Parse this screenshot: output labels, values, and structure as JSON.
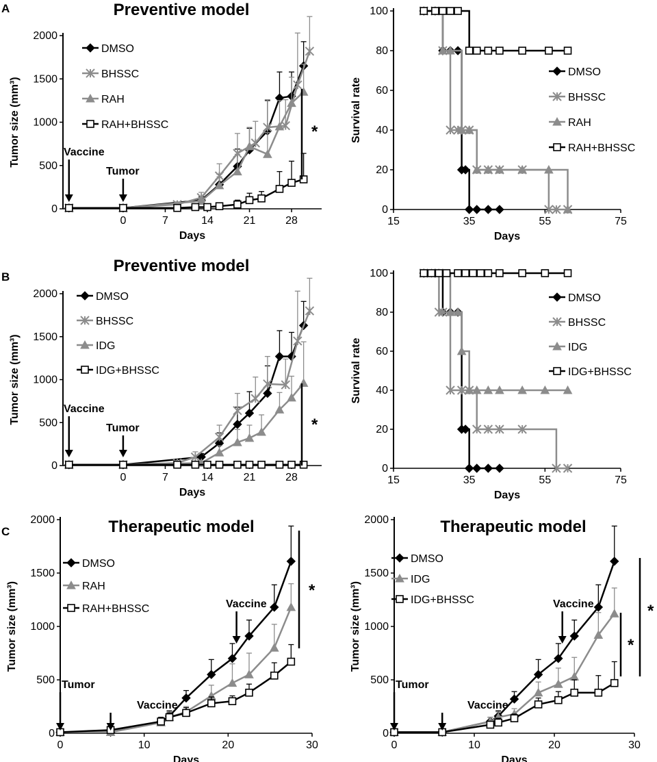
{
  "chart_data": [
    {
      "type": "line",
      "panel": "A",
      "title": "Preventive model",
      "xlabel": "Days",
      "ylabel": "Tumor size (mm³)",
      "xlim": [
        -10,
        33
      ],
      "ylim": [
        0,
        2000
      ],
      "xticks": [
        0,
        7,
        14,
        21,
        28
      ],
      "yticks": [
        0,
        500,
        1000,
        1500,
        2000
      ],
      "legend_position": "top-left",
      "series": [
        {
          "name": "DMSO",
          "marker": "diamond",
          "color": "#000000",
          "x": [
            -9,
            0,
            13,
            16,
            19,
            21,
            24,
            26,
            28,
            30
          ],
          "y": [
            10,
            10,
            100,
            280,
            490,
            680,
            900,
            1280,
            1300,
            1650
          ],
          "err": [
            0,
            0,
            40,
            120,
            200,
            250,
            350,
            300,
            280,
            280
          ]
        },
        {
          "name": "BHSSC",
          "marker": "x",
          "color": "#8c8c8c",
          "x": [
            -9,
            0,
            9,
            13,
            16,
            19,
            22,
            24,
            27,
            29,
            31
          ],
          "y": [
            10,
            10,
            50,
            130,
            380,
            640,
            760,
            940,
            960,
            1430,
            1820
          ],
          "err": [
            0,
            0,
            30,
            60,
            140,
            230,
            250,
            320,
            300,
            600,
            400
          ]
        },
        {
          "name": "RAH",
          "marker": "triangle",
          "color": "#8c8c8c",
          "x": [
            -9,
            0,
            13,
            16,
            19,
            21,
            24,
            26,
            28,
            30
          ],
          "y": [
            10,
            10,
            90,
            270,
            430,
            720,
            630,
            950,
            1220,
            1350
          ],
          "err": [
            0,
            0,
            40,
            100,
            200,
            220,
            250,
            300,
            300,
            320
          ]
        },
        {
          "name": "RAH+BHSSC",
          "marker": "square",
          "color": "#000000",
          "x": [
            -9,
            0,
            9,
            12,
            14,
            16,
            19,
            21,
            23,
            26,
            28,
            30
          ],
          "y": [
            10,
            10,
            10,
            20,
            20,
            30,
            50,
            100,
            120,
            230,
            300,
            340
          ],
          "err": [
            0,
            0,
            0,
            20,
            20,
            30,
            50,
            80,
            80,
            200,
            250,
            300
          ]
        }
      ],
      "annotations": [
        {
          "text": "Vaccine",
          "x": -9
        },
        {
          "text": "Tumor",
          "x": 0
        }
      ],
      "significance": "*"
    },
    {
      "type": "line",
      "panel": "A-right",
      "title": "",
      "xlabel": "Days",
      "ylabel": "Survival rate",
      "xlim": [
        15,
        75
      ],
      "ylim": [
        0,
        100
      ],
      "xticks": [
        15,
        35,
        55,
        75
      ],
      "yticks": [
        0,
        20,
        40,
        60,
        80,
        100
      ],
      "legend_position": "right",
      "series": [
        {
          "name": "DMSO",
          "marker": "diamond",
          "color": "#000000",
          "x": [
            23,
            26,
            28,
            30,
            32,
            33,
            34,
            35,
            37,
            40,
            43
          ],
          "y": [
            100,
            100,
            80,
            80,
            80,
            20,
            20,
            0,
            0,
            0,
            0
          ]
        },
        {
          "name": "BHSSC",
          "marker": "x",
          "color": "#8c8c8c",
          "x": [
            23,
            26,
            28,
            30,
            32,
            33,
            35,
            37,
            40,
            43,
            49,
            56,
            58,
            61
          ],
          "y": [
            100,
            100,
            80,
            40,
            40,
            40,
            40,
            20,
            20,
            20,
            20,
            0,
            0,
            0
          ]
        },
        {
          "name": "RAH",
          "marker": "triangle",
          "color": "#8c8c8c",
          "x": [
            23,
            26,
            28,
            30,
            33,
            35,
            37,
            40,
            43,
            49,
            56,
            61
          ],
          "y": [
            100,
            100,
            80,
            80,
            40,
            40,
            20,
            20,
            20,
            20,
            20,
            0
          ]
        },
        {
          "name": "RAH+BHSSC",
          "marker": "square",
          "color": "#000000",
          "x": [
            23,
            26,
            28,
            30,
            32,
            35,
            37,
            40,
            43,
            49,
            56,
            61
          ],
          "y": [
            100,
            100,
            100,
            100,
            100,
            80,
            80,
            80,
            80,
            80,
            80,
            80
          ]
        }
      ]
    },
    {
      "type": "line",
      "panel": "B",
      "title": "Preventive model",
      "xlabel": "Days",
      "ylabel": "Tumor size (mm³)",
      "xlim": [
        -10,
        33
      ],
      "ylim": [
        0,
        2000
      ],
      "xticks": [
        0,
        7,
        14,
        21,
        28
      ],
      "yticks": [
        0,
        500,
        1000,
        1500,
        2000
      ],
      "legend_position": "top-left",
      "series": [
        {
          "name": "DMSO",
          "marker": "diamond",
          "color": "#000000",
          "x": [
            -9,
            0,
            13,
            16,
            19,
            21,
            24,
            26,
            28,
            30
          ],
          "y": [
            10,
            10,
            100,
            260,
            480,
            610,
            840,
            1270,
            1270,
            1630
          ],
          "err": [
            0,
            0,
            40,
            120,
            200,
            250,
            320,
            300,
            280,
            280
          ]
        },
        {
          "name": "BHSSC",
          "marker": "x",
          "color": "#8c8c8c",
          "x": [
            -9,
            0,
            9,
            12,
            16,
            19,
            22,
            24,
            27,
            29,
            31
          ],
          "y": [
            10,
            10,
            30,
            100,
            330,
            640,
            780,
            950,
            940,
            1450,
            1800
          ],
          "err": [
            0,
            0,
            20,
            60,
            140,
            200,
            250,
            320,
            300,
            580,
            380
          ]
        },
        {
          "name": "IDG",
          "marker": "triangle",
          "color": "#8c8c8c",
          "x": [
            -9,
            0,
            13,
            16,
            19,
            21,
            23,
            26,
            28,
            30
          ],
          "y": [
            10,
            10,
            30,
            150,
            270,
            320,
            390,
            650,
            790,
            960
          ],
          "err": [
            0,
            0,
            20,
            80,
            150,
            150,
            200,
            200,
            250,
            480
          ]
        },
        {
          "name": "IDG+BHSSC",
          "marker": "square",
          "color": "#000000",
          "x": [
            -9,
            0,
            9,
            12,
            14,
            16,
            19,
            21,
            23,
            26,
            28,
            30
          ],
          "y": [
            10,
            10,
            10,
            10,
            10,
            10,
            10,
            10,
            10,
            10,
            10,
            10
          ]
        }
      ],
      "annotations": [
        {
          "text": "Vaccine",
          "x": -9
        },
        {
          "text": "Tumor",
          "x": 0
        }
      ],
      "significance": "*"
    },
    {
      "type": "line",
      "panel": "B-right",
      "title": "",
      "xlabel": "Days",
      "ylabel": "Survival rate",
      "xlim": [
        15,
        75
      ],
      "ylim": [
        0,
        100
      ],
      "xticks": [
        15,
        35,
        55,
        75
      ],
      "yticks": [
        0,
        20,
        40,
        60,
        80,
        100
      ],
      "legend_position": "right",
      "series": [
        {
          "name": "DMSO",
          "marker": "diamond",
          "color": "#000000",
          "x": [
            23,
            26,
            28,
            30,
            32,
            33,
            34,
            35,
            37,
            40,
            43
          ],
          "y": [
            100,
            100,
            80,
            80,
            80,
            20,
            20,
            0,
            0,
            0,
            0
          ]
        },
        {
          "name": "BHSSC",
          "marker": "x",
          "color": "#8c8c8c",
          "x": [
            23,
            26,
            27,
            28,
            30,
            33,
            35,
            37,
            40,
            43,
            49,
            58,
            61
          ],
          "y": [
            100,
            100,
            80,
            80,
            40,
            40,
            40,
            20,
            20,
            20,
            20,
            0,
            0
          ]
        },
        {
          "name": "IDG",
          "marker": "triangle",
          "color": "#8c8c8c",
          "x": [
            23,
            26,
            28,
            30,
            32,
            33,
            35,
            37,
            40,
            43,
            49,
            55,
            61
          ],
          "y": [
            100,
            100,
            100,
            80,
            80,
            60,
            40,
            40,
            40,
            40,
            40,
            40,
            40
          ]
        },
        {
          "name": "IDG+BHSSC",
          "marker": "square",
          "color": "#000000",
          "x": [
            23,
            25,
            27,
            29,
            32,
            34,
            36,
            38,
            40,
            43,
            49,
            55,
            61
          ],
          "y": [
            100,
            100,
            100,
            100,
            100,
            100,
            100,
            100,
            100,
            100,
            100,
            100,
            100
          ]
        }
      ]
    },
    {
      "type": "line",
      "panel": "C",
      "title": "Therapeutic model",
      "xlabel": "Days",
      "ylabel": "Tumor size (mm³)",
      "xlim": [
        0,
        30
      ],
      "ylim": [
        0,
        2000
      ],
      "xticks": [
        0,
        10,
        20,
        30
      ],
      "yticks": [
        0,
        500,
        1000,
        1500,
        2000
      ],
      "legend_position": "top-left",
      "series": [
        {
          "name": "DMSO",
          "marker": "diamond",
          "color": "#000000",
          "x": [
            0,
            6,
            12,
            13,
            15,
            18,
            20.5,
            22.5,
            25.5,
            27.5
          ],
          "y": [
            10,
            10,
            110,
            160,
            330,
            550,
            700,
            910,
            1180,
            1610
          ],
          "err": [
            0,
            0,
            40,
            50,
            70,
            140,
            140,
            150,
            210,
            330
          ]
        },
        {
          "name": "RAH",
          "marker": "triangle",
          "color": "#8c8c8c",
          "x": [
            0,
            6,
            12,
            13,
            15,
            18,
            20.5,
            22.5,
            25.5,
            27.5
          ],
          "y": [
            10,
            10,
            100,
            150,
            200,
            350,
            470,
            550,
            800,
            1180
          ],
          "err": [
            0,
            0,
            40,
            50,
            50,
            100,
            180,
            200,
            220,
            220
          ]
        },
        {
          "name": "RAH+BHSSC",
          "marker": "square",
          "color": "#000000",
          "x": [
            0,
            6,
            12,
            13,
            15,
            18,
            20.5,
            22.5,
            25.5,
            27.5
          ],
          "y": [
            10,
            30,
            110,
            150,
            190,
            280,
            300,
            380,
            540,
            670
          ],
          "err": [
            0,
            0,
            30,
            40,
            50,
            60,
            50,
            80,
            120,
            160
          ]
        }
      ],
      "annotations": [
        {
          "text": "Tumor",
          "x": 0
        },
        {
          "text": "Vaccine",
          "x": 6
        },
        {
          "text": "Vaccine",
          "x": 21
        }
      ],
      "significance": "*"
    },
    {
      "type": "line",
      "panel": "C-right",
      "title": "Therapeutic model",
      "xlabel": "Days",
      "ylabel": "Tumor size (mm³)",
      "xlim": [
        0,
        30
      ],
      "ylim": [
        0,
        2000
      ],
      "xticks": [
        0,
        10,
        20,
        30
      ],
      "yticks": [
        0,
        500,
        1000,
        1500,
        2000
      ],
      "legend_position": "top-left",
      "series": [
        {
          "name": "DMSO",
          "marker": "diamond",
          "color": "#000000",
          "x": [
            0,
            6,
            12,
            13,
            15,
            18,
            20.5,
            22.5,
            25.5,
            27.5
          ],
          "y": [
            10,
            10,
            110,
            160,
            320,
            550,
            700,
            910,
            1180,
            1610
          ],
          "err": [
            0,
            0,
            40,
            50,
            70,
            140,
            140,
            150,
            210,
            330
          ]
        },
        {
          "name": "IDG",
          "marker": "triangle",
          "color": "#8c8c8c",
          "x": [
            0,
            6,
            12,
            13,
            15,
            18,
            20.5,
            22.5,
            25.5,
            27.5
          ],
          "y": [
            10,
            10,
            110,
            150,
            180,
            380,
            460,
            530,
            920,
            1120
          ],
          "err": [
            0,
            0,
            40,
            50,
            50,
            100,
            150,
            180,
            210,
            240
          ]
        },
        {
          "name": "IDG+BHSSC",
          "marker": "square",
          "color": "#000000",
          "x": [
            0,
            6,
            12,
            13,
            15,
            18,
            20.5,
            22.5,
            25.5,
            27.5
          ],
          "y": [
            10,
            10,
            80,
            100,
            140,
            270,
            310,
            380,
            380,
            470
          ],
          "err": [
            0,
            0,
            30,
            40,
            40,
            60,
            80,
            120,
            160,
            200
          ]
        }
      ],
      "annotations": [
        {
          "text": "Tumor",
          "x": 0
        },
        {
          "text": "Vaccine",
          "x": 6
        },
        {
          "text": "Vaccine",
          "x": 21
        }
      ],
      "significance": [
        "*",
        "*"
      ]
    }
  ],
  "panel_labels": [
    "A",
    "B",
    "C"
  ]
}
